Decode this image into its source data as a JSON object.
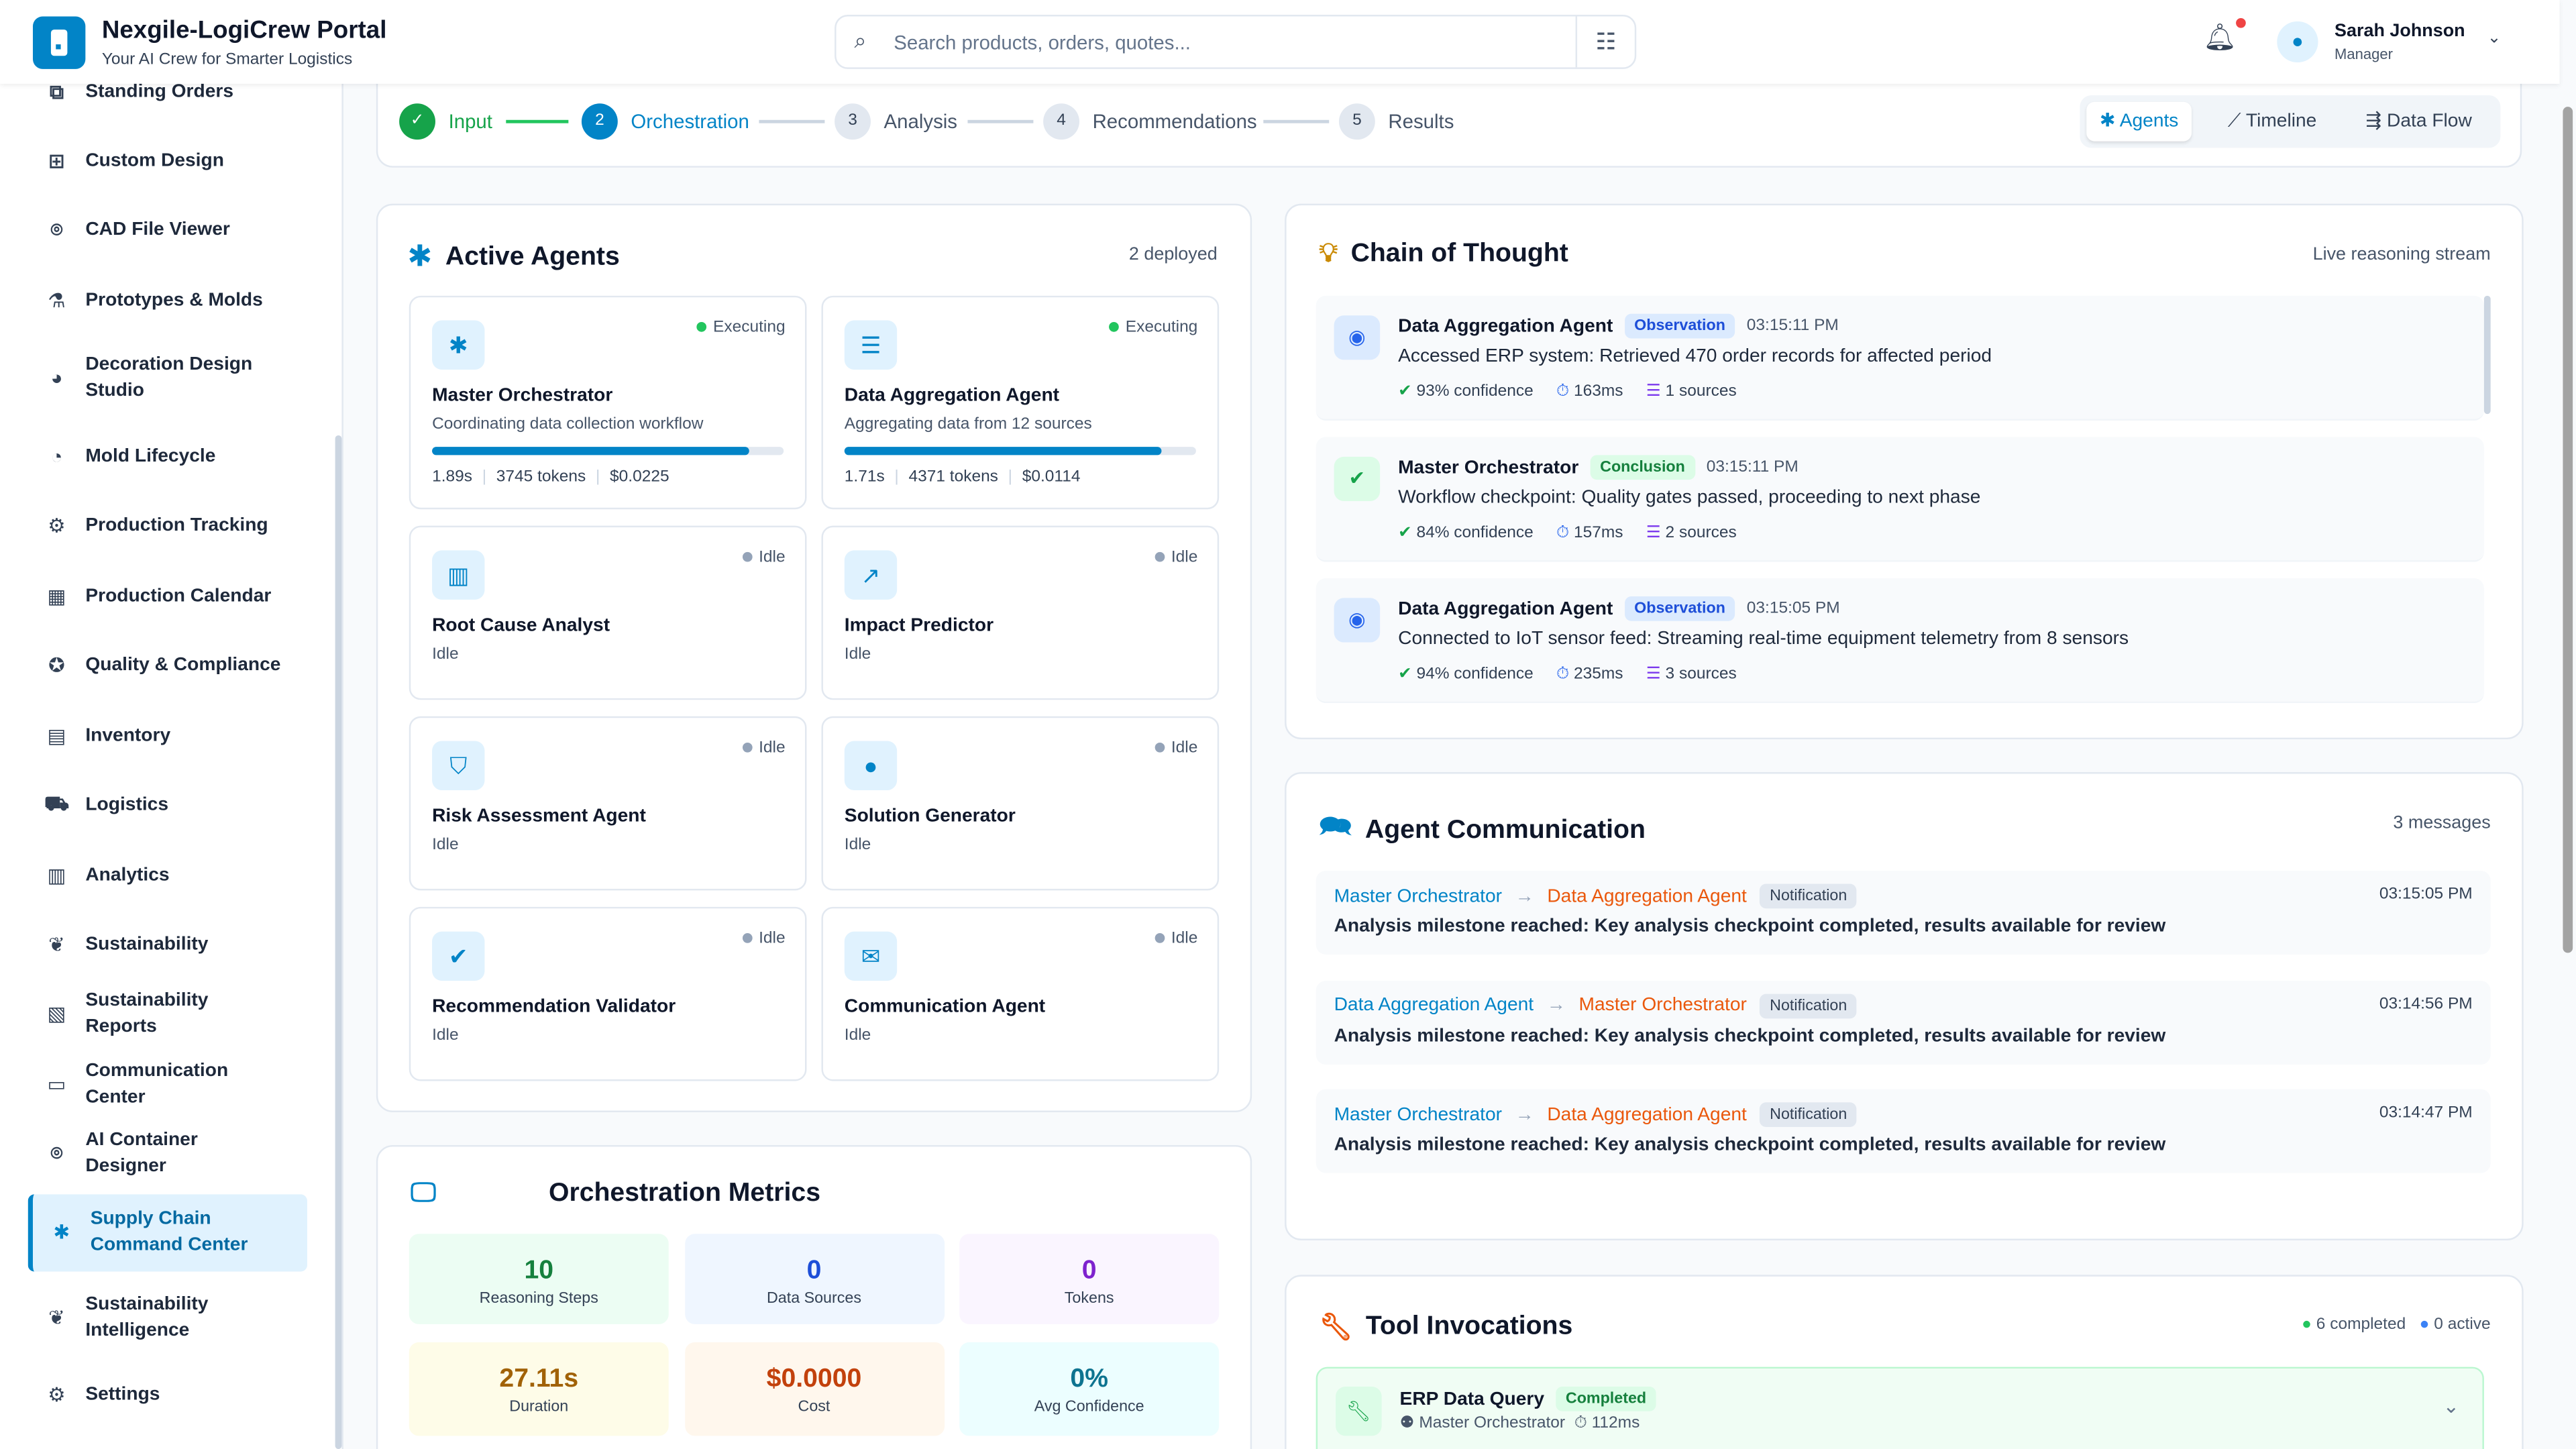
{
  "header": {
    "title": "Nexgile-LogiCrew Portal",
    "subtitle": "Your AI Crew for Smarter Logistics",
    "search_placeholder": "Search products, orders, quotes...",
    "user_name": "Sarah Johnson",
    "user_role": "Manager"
  },
  "sidebar": {
    "items": [
      {
        "label": "Standing Orders",
        "icon": "standing-orders-icon"
      },
      {
        "label": "Custom Design",
        "icon": "plus-box-icon"
      },
      {
        "label": "CAD File Viewer",
        "icon": "cad-icon"
      },
      {
        "label": "Prototypes & Molds",
        "icon": "flask-icon"
      },
      {
        "label": "Decoration Design Studio",
        "icon": "palette-icon"
      },
      {
        "label": "Mold Lifecycle",
        "icon": "lifecycle-icon"
      },
      {
        "label": "Production Tracking",
        "icon": "tracking-icon"
      },
      {
        "label": "Production Calendar",
        "icon": "calendar-icon"
      },
      {
        "label": "Quality & Compliance",
        "icon": "award-icon"
      },
      {
        "label": "Inventory",
        "icon": "inventory-icon"
      },
      {
        "label": "Logistics",
        "icon": "truck-icon"
      },
      {
        "label": "Analytics",
        "icon": "analytics-icon"
      },
      {
        "label": "Sustainability",
        "icon": "leaf-icon"
      },
      {
        "label": "Sustainability Reports",
        "icon": "report-icon"
      },
      {
        "label": "Communication Center",
        "icon": "chat-icon"
      },
      {
        "label": "AI Container Designer",
        "icon": "ai-icon"
      },
      {
        "label": "Supply Chain Command Center",
        "icon": "hub-icon",
        "active": true
      },
      {
        "label": "Sustainability Intelligence",
        "icon": "leaf-icon"
      },
      {
        "label": "Settings",
        "icon": "gear-icon"
      }
    ]
  },
  "stepper": {
    "steps": [
      {
        "num": "✓",
        "label": "Input",
        "state": "done"
      },
      {
        "num": "2",
        "label": "Orchestration",
        "state": "current"
      },
      {
        "num": "3",
        "label": "Analysis"
      },
      {
        "num": "4",
        "label": "Recommendations"
      },
      {
        "num": "5",
        "label": "Results"
      }
    ],
    "views": [
      {
        "label": "Agents",
        "icon": "hub-icon",
        "active": true
      },
      {
        "label": "Timeline",
        "icon": "trend-icon"
      },
      {
        "label": "Data Flow",
        "icon": "flow-icon"
      }
    ]
  },
  "agents": {
    "title": "Active Agents",
    "count": "2 deployed",
    "items": [
      {
        "name": "Master Orchestrator",
        "status": "Executing",
        "desc": "Coordinating data collection workflow",
        "progress": 0.9,
        "time": "1.89s",
        "tokens": "3745 tokens",
        "cost": "$0.0225",
        "icon": "✱"
      },
      {
        "name": "Data Aggregation Agent",
        "status": "Executing",
        "desc": "Aggregating data from 12 sources",
        "progress": 0.9,
        "time": "1.71s",
        "tokens": "4371 tokens",
        "cost": "$0.0114",
        "icon": "☰"
      },
      {
        "name": "Root Cause Analyst",
        "status": "Idle",
        "desc": "Idle",
        "icon": "▥"
      },
      {
        "name": "Impact Predictor",
        "status": "Idle",
        "desc": "Idle",
        "icon": "↗"
      },
      {
        "name": "Risk Assessment Agent",
        "status": "Idle",
        "desc": "Idle",
        "icon": "⛉"
      },
      {
        "name": "Solution Generator",
        "status": "Idle",
        "desc": "Idle",
        "icon": "●"
      },
      {
        "name": "Recommendation Validator",
        "status": "Idle",
        "desc": "Idle",
        "icon": "✔"
      },
      {
        "name": "Communication Agent",
        "status": "Idle",
        "desc": "Idle",
        "icon": "✉"
      }
    ]
  },
  "metrics": {
    "title": "Orchestration Metrics",
    "tiles": [
      {
        "value": "10",
        "label": "Reasoning Steps",
        "color": "#15803d",
        "bg": "#ecfdf3"
      },
      {
        "value": "0",
        "label": "Data Sources",
        "color": "#1d4ed8",
        "bg": "#eff6ff"
      },
      {
        "value": "0",
        "label": "Tokens",
        "color": "#7e22ce",
        "bg": "#faf5ff"
      },
      {
        "value": "27.11s",
        "label": "Duration",
        "color": "#a16207",
        "bg": "#fefce8"
      },
      {
        "value": "$0.0000",
        "label": "Cost",
        "color": "#c2410c",
        "bg": "#fff7ed"
      },
      {
        "value": "0%",
        "label": "Avg Confidence",
        "color": "#0e7490",
        "bg": "#ecfeff"
      }
    ]
  },
  "chain": {
    "title": "Chain of Thought",
    "meta": "Live reasoning stream",
    "entries": [
      {
        "agent": "Data Aggregation Agent",
        "type": "Observation",
        "time": "03:15:11 PM",
        "text": "Accessed ERP system: Retrieved 470 order records for affected period",
        "confidence": "93% confidence",
        "latency": "163ms",
        "sources": "1 sources"
      },
      {
        "agent": "Master Orchestrator",
        "type": "Conclusion",
        "time": "03:15:11 PM",
        "text": "Workflow checkpoint: Quality gates passed, proceeding to next phase",
        "confidence": "84% confidence",
        "latency": "157ms",
        "sources": "2 sources"
      },
      {
        "agent": "Data Aggregation Agent",
        "type": "Observation",
        "time": "03:15:05 PM",
        "text": "Connected to IoT sensor feed: Streaming real-time equipment telemetry from 8 sensors",
        "confidence": "94% confidence",
        "latency": "235ms",
        "sources": "3 sources"
      }
    ]
  },
  "comm": {
    "title": "Agent Communication",
    "meta": "3 messages",
    "messages": [
      {
        "from": "Master Orchestrator",
        "to": "Data Aggregation Agent",
        "type": "Notification",
        "time": "03:15:05 PM",
        "text": "Analysis milestone reached: Key analysis checkpoint completed, results available for review"
      },
      {
        "from": "Data Aggregation Agent",
        "to": "Master Orchestrator",
        "type": "Notification",
        "time": "03:14:56 PM",
        "text": "Analysis milestone reached: Key analysis checkpoint completed, results available for review"
      },
      {
        "from": "Master Orchestrator",
        "to": "Data Aggregation Agent",
        "type": "Notification",
        "time": "03:14:47 PM",
        "text": "Analysis milestone reached: Key analysis checkpoint completed, results available for review"
      }
    ]
  },
  "tools": {
    "title": "Tool Invocations",
    "completed": "6 completed",
    "active": "0 active",
    "items": [
      {
        "name": "ERP Data Query",
        "status": "Completed",
        "agent": "Master Orchestrator",
        "latency": "112ms"
      }
    ]
  }
}
